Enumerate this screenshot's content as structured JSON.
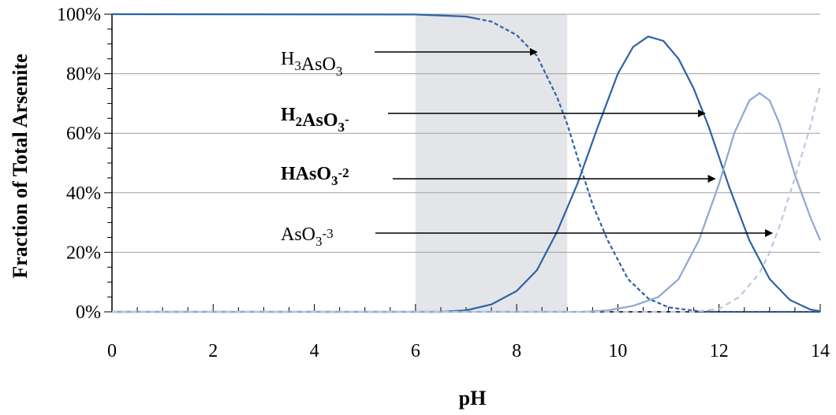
{
  "chart_data": {
    "type": "line",
    "xlabel": "pH",
    "ylabel": "Fraction of Total Arsenite",
    "xlim": [
      0,
      14
    ],
    "ylim": [
      0,
      100
    ],
    "x_ticks": [
      "0",
      "2",
      "4",
      "6",
      "8",
      "10",
      "12",
      "14"
    ],
    "y_ticks": [
      "0%",
      "20%",
      "40%",
      "60%",
      "80%",
      "100%"
    ],
    "grid": "horizontal",
    "shaded_region": {
      "x_start": 6,
      "x_end": 9,
      "color": "#e3e5e8"
    },
    "series": [
      {
        "id": "h3aso3",
        "label_parts": [
          {
            "t": "H"
          },
          {
            "t": "3",
            "sub": true
          },
          {
            "t": "AsO"
          },
          {
            "t": "3",
            "sub": true
          }
        ],
        "bold": false,
        "color": "#2e62a3",
        "x": [
          0,
          6,
          7,
          7.5,
          8,
          8.4,
          8.8,
          9.0,
          9.2,
          9.5,
          9.8,
          10.2,
          10.6,
          11.0,
          11.6,
          12,
          14
        ],
        "values": [
          100,
          99.9,
          99.2,
          97.5,
          93,
          86,
          72,
          63,
          52,
          36,
          24,
          11,
          4.5,
          1.5,
          0.2,
          0,
          0
        ],
        "dash_from": 7.2,
        "arrow_to": [
          8.4,
          88
        ]
      },
      {
        "id": "h2aso3",
        "label_parts": [
          {
            "t": "H"
          },
          {
            "t": "2",
            "sub": true
          },
          {
            "t": "AsO"
          },
          {
            "t": "3",
            "sub": true
          },
          {
            "t": "-",
            "sup": true
          }
        ],
        "bold": true,
        "color": "#2e62a3",
        "x": [
          0,
          6.5,
          7,
          7.5,
          8,
          8.4,
          8.8,
          9.2,
          9.6,
          10.0,
          10.3,
          10.6,
          10.9,
          11.2,
          11.5,
          11.8,
          12.2,
          12.6,
          13.0,
          13.4,
          13.8,
          14
        ],
        "values": [
          0,
          0,
          0.5,
          2.5,
          7,
          14,
          27,
          43,
          62,
          80,
          89,
          92.5,
          91,
          85,
          75,
          62,
          42,
          24,
          11,
          4,
          0.8,
          0.2
        ]
      },
      {
        "id": "haso3",
        "label_parts": [
          {
            "t": "HAsO"
          },
          {
            "t": "3",
            "sub": true
          },
          {
            "t": "-2",
            "sup": true
          }
        ],
        "bold": true,
        "color": "#8ea8d0",
        "x": [
          0,
          9.3,
          9.8,
          10.3,
          10.8,
          11.2,
          11.6,
          12.0,
          12.3,
          12.6,
          12.8,
          13.0,
          13.2,
          13.5,
          13.8,
          14.0
        ],
        "values": [
          0,
          0,
          0.5,
          2,
          5,
          11,
          24,
          43,
          60,
          71,
          73.5,
          71,
          63,
          46,
          32,
          24
        ],
        "arrow_to": [
          11.9,
          45
        ]
      },
      {
        "id": "aso3",
        "label_parts": [
          {
            "t": "AsO"
          },
          {
            "t": "3",
            "sub": true
          },
          {
            "t": "-3",
            "sup": true
          }
        ],
        "bold": false,
        "color": "#b9c7e2",
        "x": [
          0,
          11.5,
          12.0,
          12.4,
          12.8,
          13.0,
          13.2,
          13.5,
          13.8,
          14.0
        ],
        "values": [
          0,
          0,
          1,
          5,
          13,
          20,
          29,
          45,
          62,
          76
        ],
        "dashed": true,
        "arrow_to": [
          13.0,
          27
        ]
      }
    ]
  }
}
